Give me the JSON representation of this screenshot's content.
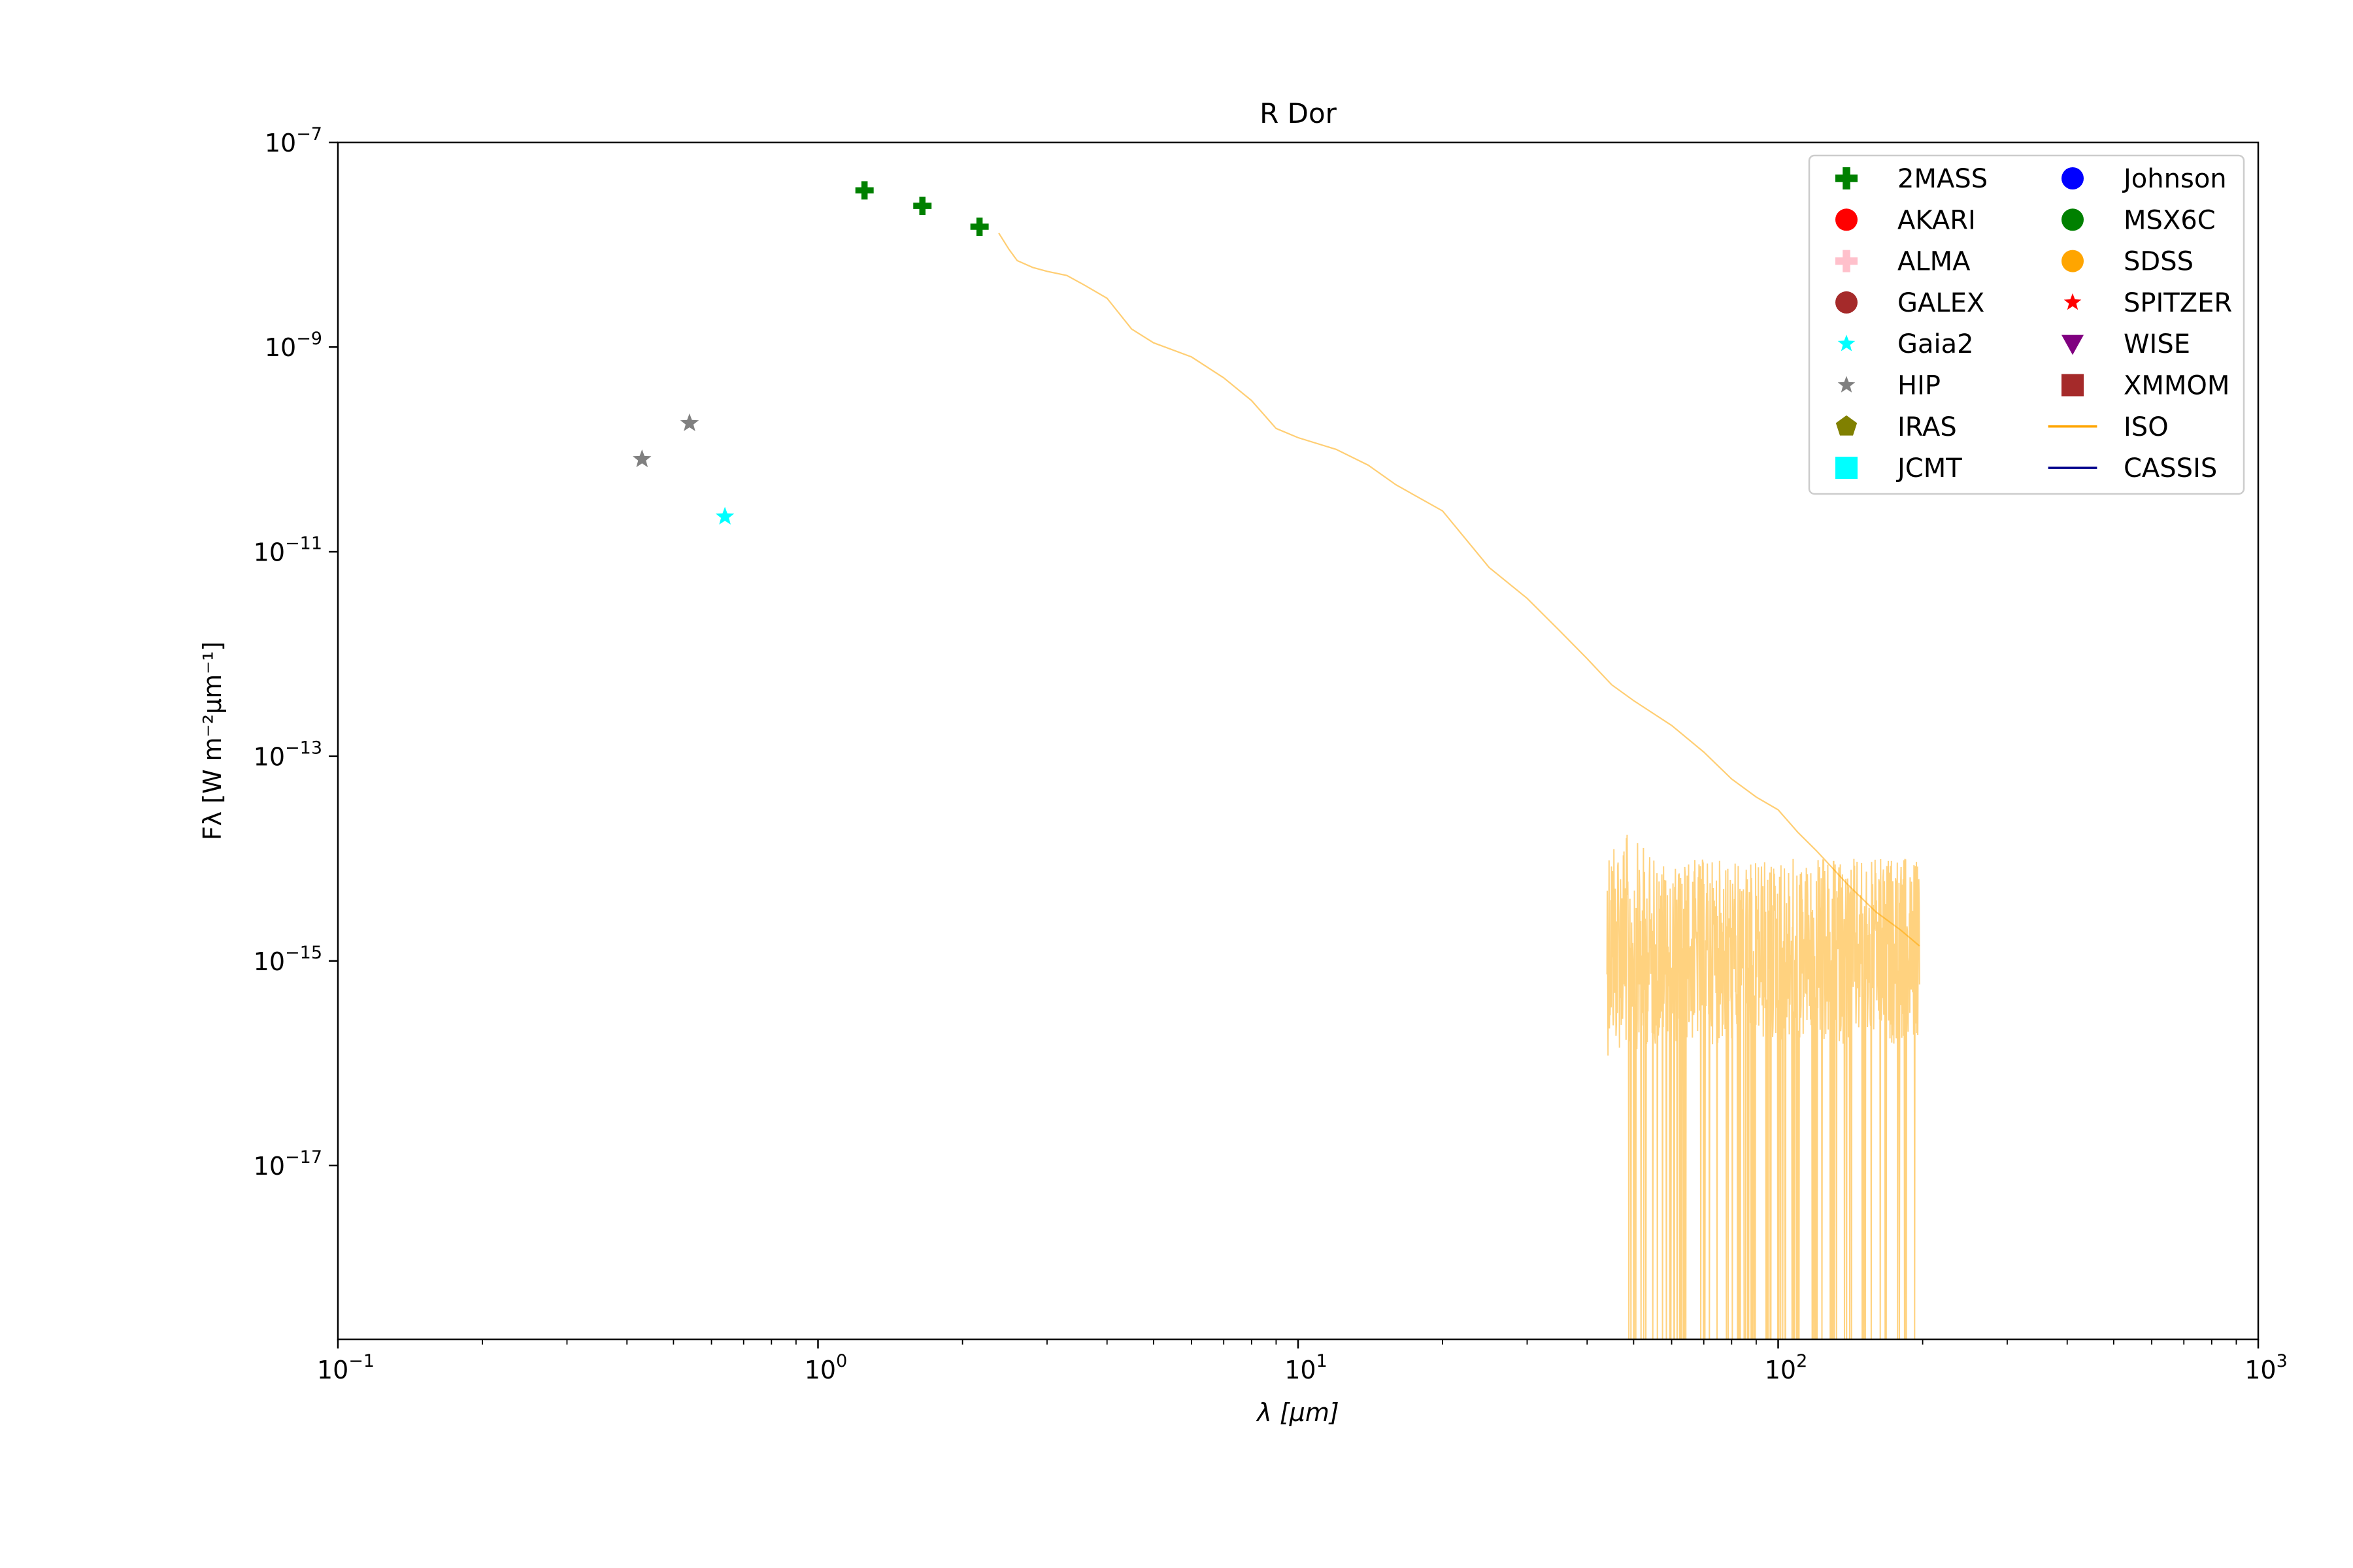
{
  "chart_data": {
    "type": "scatter",
    "title": "R Dor",
    "xlabel": "λ [μm]",
    "ylabel": "Fλ [W m⁻²μm⁻¹]",
    "x_scale": "log",
    "y_scale": "log",
    "xlim": [
      0.1,
      1000
    ],
    "ylim": [
      2e-19,
      1e-07
    ],
    "x_ticks": [
      {
        "value": 0.1,
        "base": "10",
        "exp": "−1"
      },
      {
        "value": 1,
        "base": "10",
        "exp": "0"
      },
      {
        "value": 10,
        "base": "10",
        "exp": "1"
      },
      {
        "value": 100,
        "base": "10",
        "exp": "2"
      },
      {
        "value": 1000,
        "base": "10",
        "exp": "3"
      }
    ],
    "y_ticks": [
      {
        "value": 1e-07,
        "base": "10",
        "exp": "−7"
      },
      {
        "value": 1e-09,
        "base": "10",
        "exp": "−9"
      },
      {
        "value": 1e-11,
        "base": "10",
        "exp": "−11"
      },
      {
        "value": 1e-13,
        "base": "10",
        "exp": "−13"
      },
      {
        "value": 1e-15,
        "base": "10",
        "exp": "−15"
      },
      {
        "value": 1e-17,
        "base": "10",
        "exp": "−17"
      }
    ],
    "grid": false,
    "legend_position": "top-right",
    "series": [
      {
        "name": "2MASS",
        "marker": "plus",
        "color": "#008000",
        "x": [
          1.25,
          1.65,
          2.17
        ],
        "y": [
          3.4e-08,
          2.4e-08,
          1.5e-08
        ]
      },
      {
        "name": "AKARI",
        "marker": "circle",
        "color": "#ff0000",
        "x": [],
        "y": []
      },
      {
        "name": "ALMA",
        "marker": "plus",
        "color": "#ffc0cb",
        "x": [],
        "y": []
      },
      {
        "name": "GALEX",
        "marker": "circle",
        "color": "#a52a2a",
        "x": [],
        "y": []
      },
      {
        "name": "Gaia2",
        "marker": "star",
        "color": "#00ffff",
        "x": [
          0.64
        ],
        "y": [
          2.2e-11
        ]
      },
      {
        "name": "HIP",
        "marker": "star",
        "color": "#808080",
        "x": [
          0.43,
          0.54
        ],
        "y": [
          8e-11,
          1.8e-10
        ]
      },
      {
        "name": "IRAS",
        "marker": "pentagon",
        "color": "#808000",
        "x": [],
        "y": []
      },
      {
        "name": "JCMT",
        "marker": "square",
        "color": "#00ffff",
        "x": [],
        "y": []
      },
      {
        "name": "Johnson",
        "marker": "circle",
        "color": "#0000ff",
        "x": [],
        "y": []
      },
      {
        "name": "MSX6C",
        "marker": "circle",
        "color": "#008000",
        "x": [],
        "y": []
      },
      {
        "name": "SDSS",
        "marker": "circle",
        "color": "#ffa500",
        "x": [],
        "y": []
      },
      {
        "name": "SPITZER",
        "marker": "star",
        "color": "#ff0000",
        "x": [],
        "y": []
      },
      {
        "name": "WISE",
        "marker": "triangle-down",
        "color": "#800080",
        "x": [],
        "y": []
      },
      {
        "name": "XMMOM",
        "marker": "square",
        "color": "#a52a2a",
        "x": [],
        "y": []
      },
      {
        "name": "ISO",
        "marker": "line",
        "color": "#ffa500",
        "x": [
          2.38,
          2.5,
          2.6,
          2.8,
          3.0,
          3.3,
          3.6,
          4.0,
          4.5,
          5.0,
          6.0,
          7.0,
          8.0,
          9.0,
          10.0,
          12.0,
          14.0,
          16.0,
          20.0,
          25.0,
          30.0,
          35.0,
          40.0,
          45.0,
          50.0,
          60.0,
          70.0,
          80.0,
          90.0,
          100.0,
          110.0,
          120.0,
          140.0,
          160.0,
          180.0,
          197.0
        ],
        "y": [
          1.3e-08,
          9e-09,
          7e-09,
          6e-09,
          5.5e-09,
          5e-09,
          4e-09,
          3e-09,
          1.5e-09,
          1.1e-09,
          8e-10,
          5e-10,
          3e-10,
          1.6e-10,
          1.3e-10,
          1e-10,
          7e-11,
          4.5e-11,
          2.5e-11,
          7e-12,
          3.5e-12,
          1.7e-12,
          9e-13,
          5e-13,
          3.5e-13,
          2e-13,
          1.1e-13,
          6e-14,
          4e-14,
          3e-14,
          1.8e-14,
          1.2e-14,
          5.5e-15,
          3e-15,
          2e-15,
          1.4e-15
        ]
      },
      {
        "name": "CASSIS",
        "marker": "line",
        "color": "#00008b",
        "x": [],
        "y": []
      }
    ],
    "iso_noise": {
      "x_range": [
        44,
        197
      ],
      "x_range_dropouts": [
        48,
        195
      ],
      "y_upper_start": 2.5e-14,
      "y_upper": 1e-14,
      "y_lower": 4e-16
    }
  }
}
